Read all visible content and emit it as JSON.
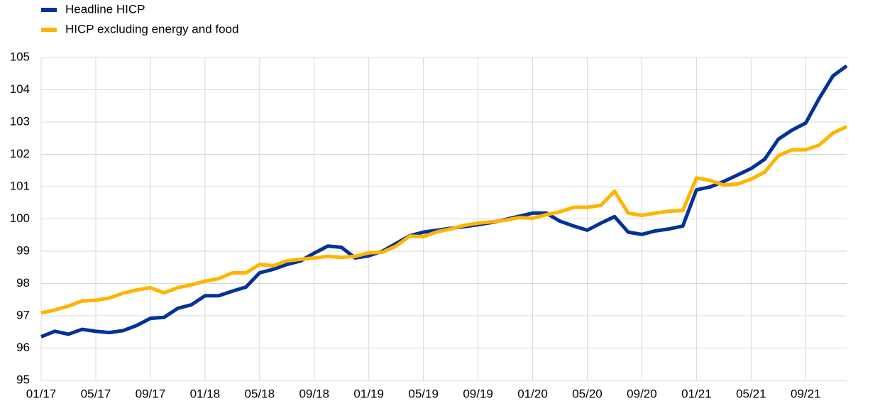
{
  "chart_data": {
    "type": "line",
    "categories": [
      "01/17",
      null,
      null,
      null,
      "05/17",
      null,
      null,
      null,
      "09/17",
      null,
      null,
      null,
      "01/18",
      null,
      null,
      null,
      "05/18",
      null,
      null,
      null,
      "09/18",
      null,
      null,
      null,
      "01/19",
      null,
      null,
      null,
      "05/19",
      null,
      null,
      null,
      "09/19",
      null,
      null,
      null,
      "01/20",
      null,
      null,
      null,
      "05/20",
      null,
      null,
      null,
      "09/20",
      null,
      null,
      null,
      "01/21",
      null,
      null,
      null,
      "05/21",
      null,
      null,
      null,
      "09/21",
      null,
      null,
      null
    ],
    "series": [
      {
        "name": "Headline HICP",
        "color": "#003299",
        "values": [
          96.35,
          96.52,
          96.43,
          96.58,
          96.52,
          96.48,
          96.54,
          96.7,
          96.92,
          96.95,
          97.23,
          97.34,
          97.62,
          97.62,
          97.76,
          97.89,
          98.33,
          98.44,
          98.59,
          98.7,
          98.94,
          99.16,
          99.12,
          98.79,
          98.86,
          99.0,
          99.24,
          99.48,
          99.59,
          99.65,
          99.71,
          99.76,
          99.82,
          99.89,
          99.98,
          100.08,
          100.18,
          100.18,
          99.93,
          99.78,
          99.65,
          99.87,
          100.07,
          99.59,
          99.52,
          99.63,
          99.69,
          99.78,
          100.9,
          100.99,
          101.16,
          101.36,
          101.56,
          101.85,
          102.47,
          102.75,
          102.97,
          103.74,
          104.43,
          104.74
        ]
      },
      {
        "name": "HICP excluding energy and food",
        "color": "#ffb400",
        "values": [
          97.09,
          97.18,
          97.3,
          97.46,
          97.48,
          97.55,
          97.7,
          97.8,
          97.87,
          97.71,
          97.87,
          97.96,
          98.07,
          98.15,
          98.33,
          98.33,
          98.59,
          98.55,
          98.7,
          98.75,
          98.79,
          98.84,
          98.81,
          98.84,
          98.95,
          98.97,
          99.16,
          99.47,
          99.45,
          99.6,
          99.69,
          99.8,
          99.87,
          99.91,
          99.96,
          100.04,
          100.02,
          100.13,
          100.22,
          100.36,
          100.36,
          100.42,
          100.86,
          100.18,
          100.11,
          100.18,
          100.24,
          100.26,
          101.27,
          101.19,
          101.05,
          101.08,
          101.23,
          101.45,
          101.96,
          102.14,
          102.14,
          102.29,
          102.66,
          102.86
        ]
      }
    ],
    "ylim": [
      95,
      105
    ],
    "yticks": [
      95,
      96,
      97,
      98,
      99,
      100,
      101,
      102,
      103,
      104,
      105
    ],
    "grid": true,
    "legend": "top-left"
  }
}
